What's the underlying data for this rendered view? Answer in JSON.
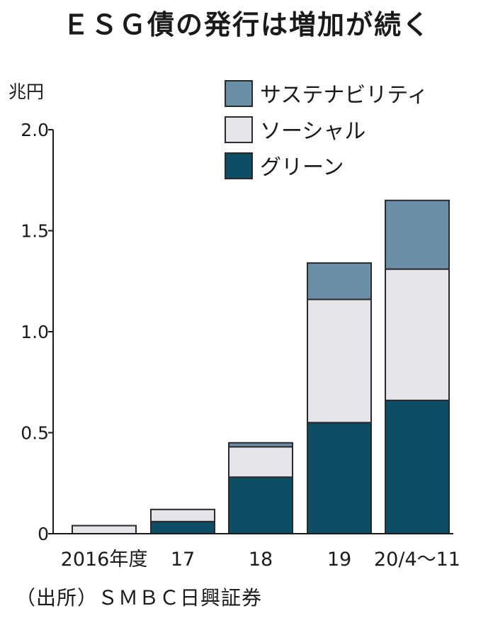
{
  "title": "ＥＳＧ債の発行は増加が続く",
  "source": "（出所）ＳＭＢＣ日興証券",
  "chart_data": {
    "type": "bar",
    "stacked": true,
    "ylabel": "兆円",
    "ylim": [
      0,
      2.0
    ],
    "yticks": [
      "0",
      "0.5",
      "1.0",
      "1.5",
      "2.0"
    ],
    "categories": [
      "2016年度",
      "17",
      "18",
      "19",
      "20/4～11"
    ],
    "series": [
      {
        "name": "グリーン",
        "color": "#0e4d66",
        "values": [
          0.0,
          0.06,
          0.28,
          0.55,
          0.66
        ]
      },
      {
        "name": "ソーシャル",
        "color": "#e4e4ea",
        "values": [
          0.04,
          0.06,
          0.15,
          0.61,
          0.65
        ]
      },
      {
        "name": "サステナビリティ",
        "color": "#6b8fa8",
        "values": [
          0.0,
          0.0,
          0.02,
          0.18,
          0.34
        ]
      }
    ],
    "legend_order": [
      "サステナビリティ",
      "ソーシャル",
      "グリーン"
    ],
    "legend_position": "top-right",
    "grid": false
  }
}
